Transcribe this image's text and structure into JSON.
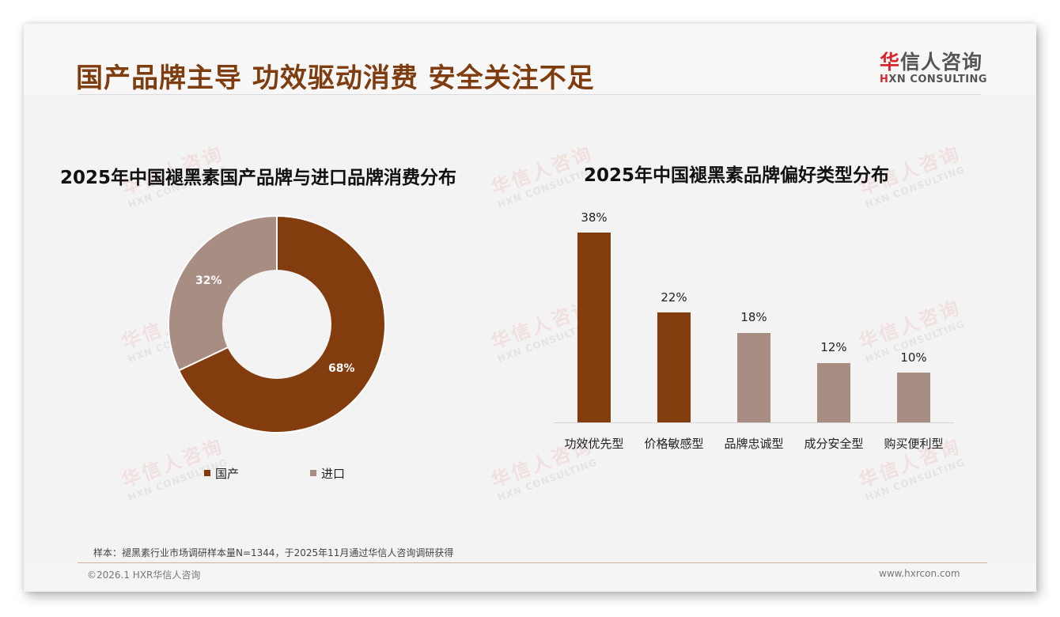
{
  "header": {
    "title": "国产品牌主导 功效驱动消费 安全关注不足",
    "logo": {
      "cn_mark": "华",
      "cn_rest": "信人咨询",
      "en_mark": "H",
      "en_rest": "XN CONSULTING"
    }
  },
  "watermark": {
    "cn": "华信人咨询",
    "en": "HXN CONSULTING"
  },
  "colors": {
    "primary": "#823C0E",
    "secondary": "#A88D83",
    "title": "#7F3D0F",
    "logo_red": "#D7262C"
  },
  "left_chart": {
    "title": "2025年中国褪黑素国产品牌与进口品牌消费分布",
    "slices": [
      {
        "label": "国产",
        "value_label": "68%"
      },
      {
        "label": "进口",
        "value_label": "32%"
      }
    ]
  },
  "right_chart": {
    "title": "2025年中国褪黑素品牌偏好类型分布",
    "bars": [
      {
        "category": "功效优先型",
        "value_label": "38%"
      },
      {
        "category": "价格敏感型",
        "value_label": "22%"
      },
      {
        "category": "品牌忠诚型",
        "value_label": "18%"
      },
      {
        "category": "成分安全型",
        "value_label": "12%"
      },
      {
        "category": "购买便利型",
        "value_label": "10%"
      }
    ]
  },
  "chart_data": [
    {
      "type": "pie",
      "subtype": "donut",
      "title": "2025年中国褪黑素国产品牌与进口品牌消费分布",
      "categories": [
        "国产",
        "进口"
      ],
      "values": [
        68,
        32
      ],
      "unit": "%",
      "colors": [
        "#823C0E",
        "#A88D83"
      ],
      "legend_position": "bottom"
    },
    {
      "type": "bar",
      "title": "2025年中国褪黑素品牌偏好类型分布",
      "categories": [
        "功效优先型",
        "价格敏感型",
        "品牌忠诚型",
        "成分安全型",
        "购买便利型"
      ],
      "values": [
        38,
        22,
        18,
        12,
        10
      ],
      "unit": "%",
      "colors": [
        "#823C0E",
        "#823C0E",
        "#A88D83",
        "#A88D83",
        "#A88D83"
      ],
      "xlabel": "",
      "ylabel": "",
      "ylim": [
        0,
        40
      ],
      "grid": false,
      "data_labels": true
    }
  ],
  "footer": {
    "source_note": "样本：褪黑素行业市场调研样本量N=1344，于2025年11月通过华信人咨询调研获得",
    "copyright": "©2026.1 HXR华信人咨询",
    "website": "www.hxrcon.com"
  }
}
